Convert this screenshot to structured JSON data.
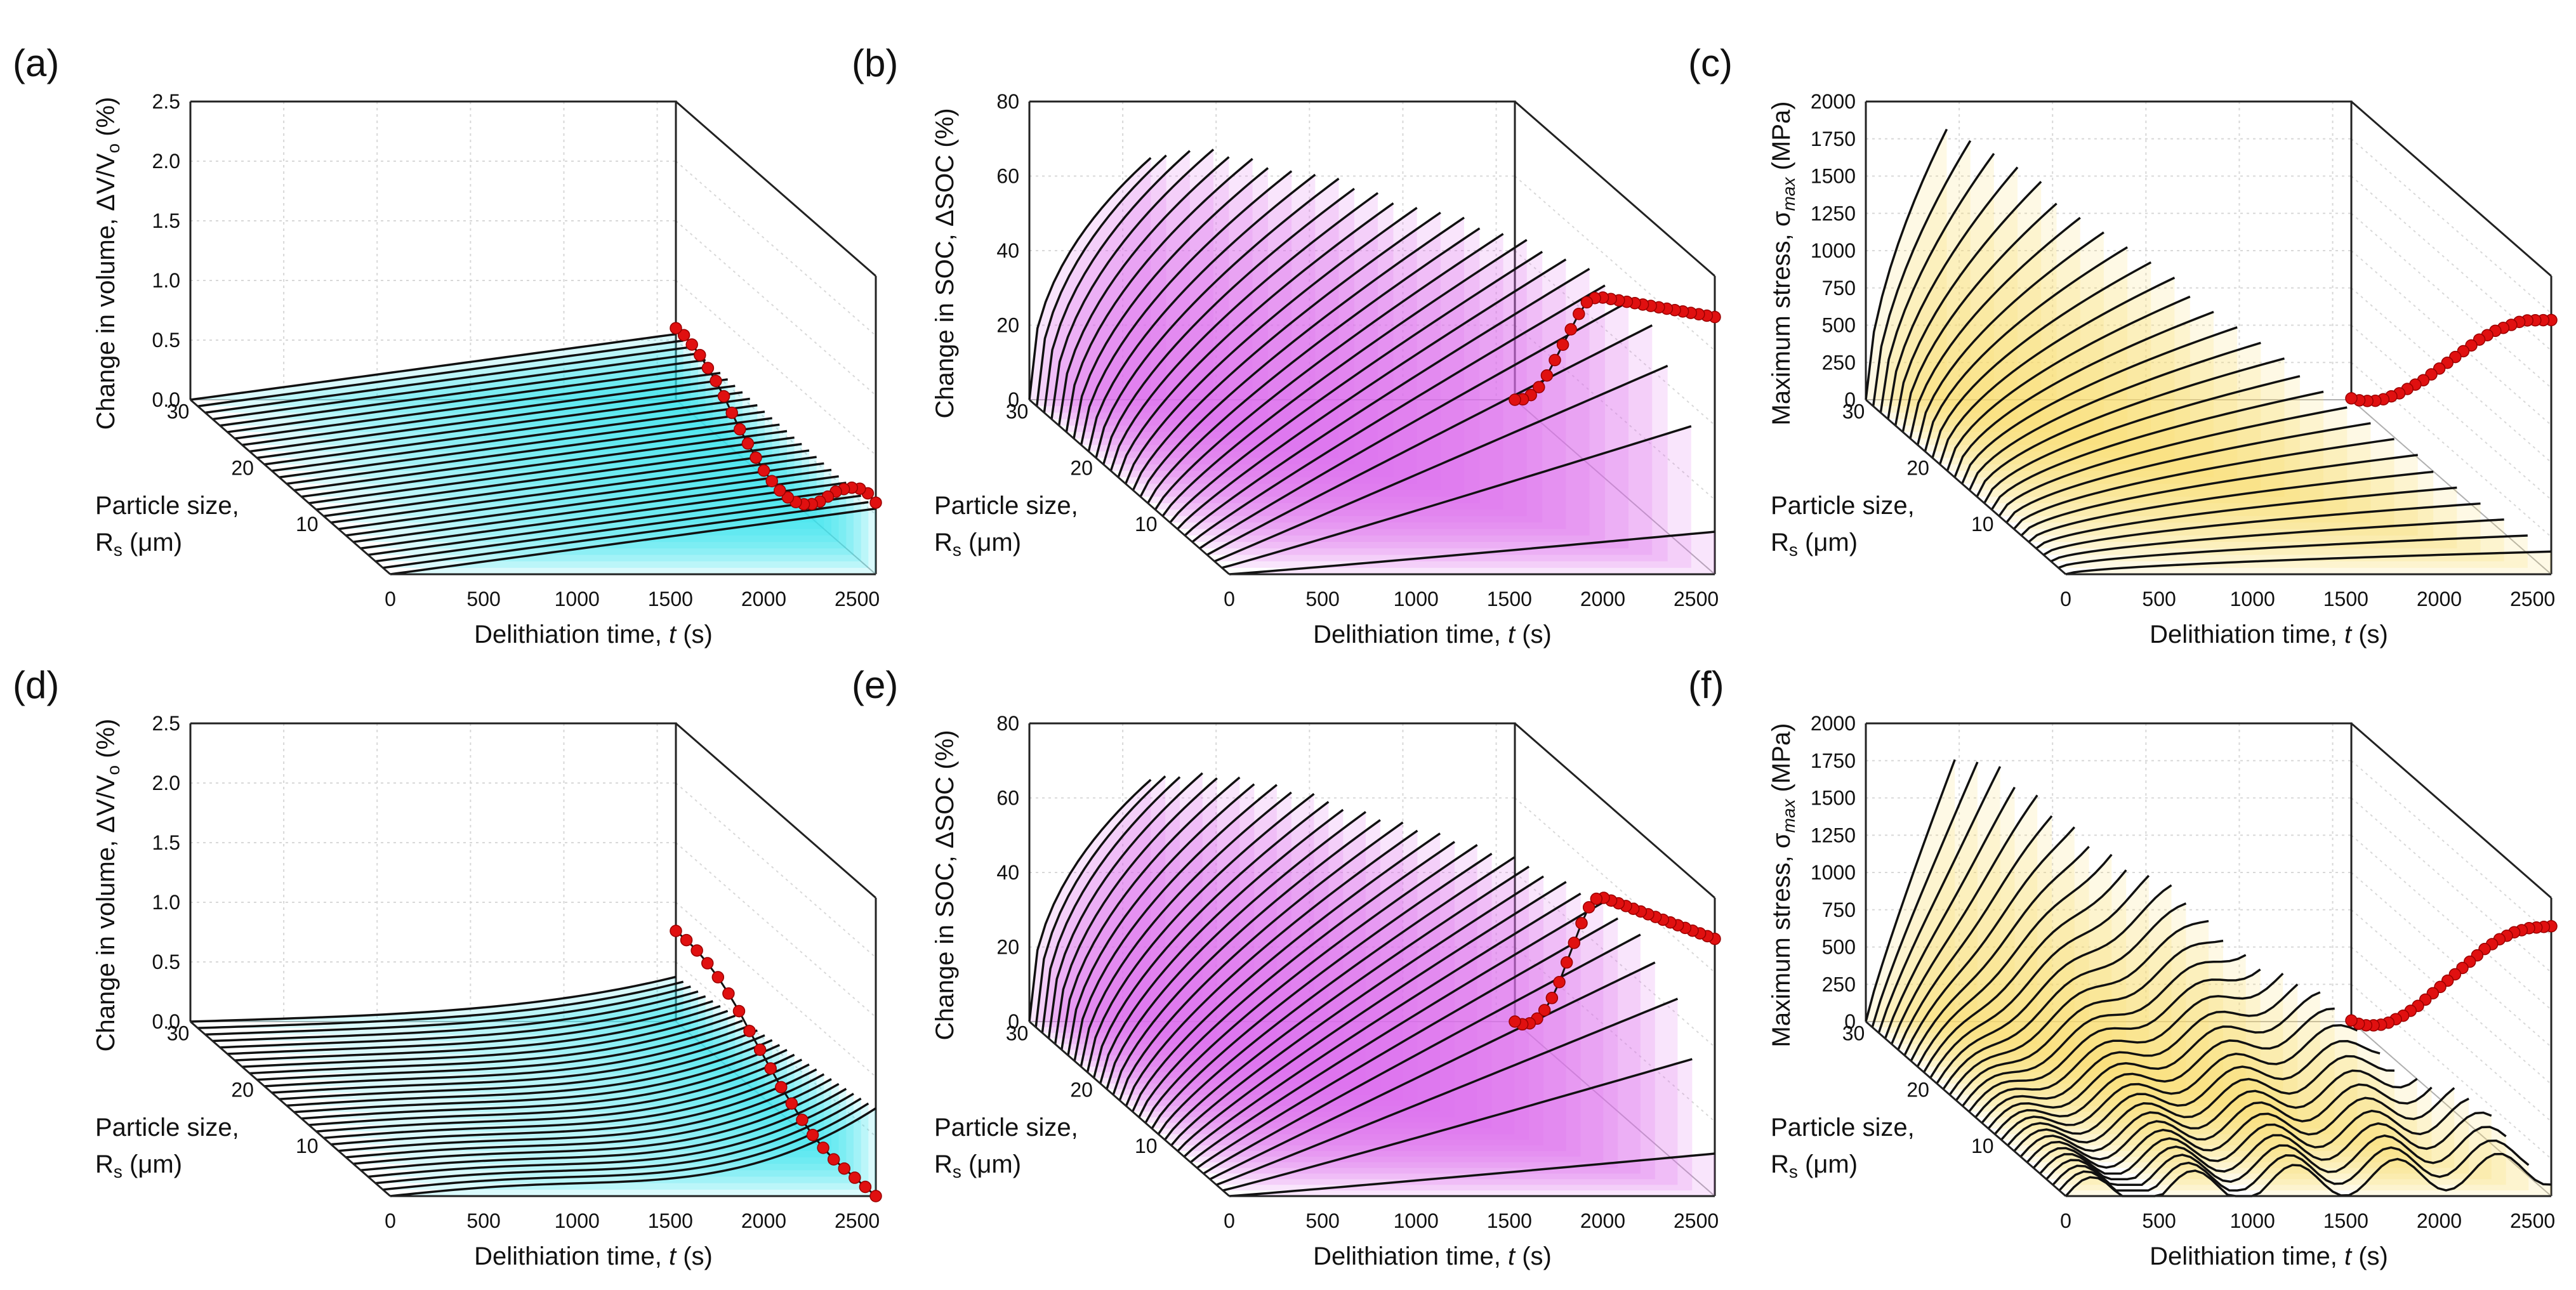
{
  "figure": {
    "background": "#ffffff"
  },
  "axis_text": {
    "x_label_main": "Delithiation time, ",
    "x_label_var": "t",
    "x_label_unit": " (s)",
    "y_label_1": "Particle size,",
    "y_label_2_main": "R",
    "y_label_2_sub": "s",
    "y_label_2_unit": " (μm)",
    "x_ticks": [
      "0",
      "500",
      "1000",
      "1500",
      "2000",
      "2500"
    ],
    "y_ticks": [
      "10",
      "20",
      "30"
    ]
  },
  "chart_data": [
    {
      "panel": "(a)",
      "type": "waterfall",
      "z_label": "Change in volume, ΔV/V",
      "z_label_sub": "o",
      "z_label_unit": " (%)",
      "z_ticks": [
        "0.0",
        "0.5",
        "1.0",
        "1.5",
        "2.0",
        "2.5"
      ],
      "zlim": [
        0,
        2.5
      ],
      "xlim": [
        0,
        2600
      ],
      "ylim": [
        1,
        32
      ],
      "fill_color": "#33e6f0",
      "series_count": 28,
      "profile": "volume_a",
      "peak_end": 0.6,
      "red_dots": [
        0.6,
        0.62,
        0.6,
        0.55,
        0.48,
        0.4,
        0.3,
        0.2,
        0.12,
        0.06,
        0.02,
        0.0,
        0.0,
        0.02,
        0.05,
        0.1,
        0.16,
        0.22,
        0.3,
        0.38,
        0.45,
        0.5,
        0.55,
        0.58,
        0.6,
        0.6
      ]
    },
    {
      "panel": "(b)",
      "type": "waterfall",
      "z_label": "Change in SOC, ΔSOC",
      "z_label_sub": "",
      "z_label_unit": " (%)",
      "z_ticks": [
        "0",
        "20",
        "40",
        "60",
        "80"
      ],
      "zlim": [
        0,
        80
      ],
      "xlim": [
        0,
        2600
      ],
      "ylim": [
        1,
        32
      ],
      "fill_color": "#e070f0",
      "series_count": 28,
      "profile": "soc",
      "peak_end": 69,
      "red_dots": [
        69,
        67.5,
        66,
        64.5,
        63,
        61.5,
        60,
        58.5,
        57,
        55.5,
        54,
        52.5,
        51,
        49.5,
        48,
        46,
        43,
        38,
        32,
        26,
        20,
        14,
        9,
        5,
        2,
        0
      ]
    },
    {
      "panel": "(c)",
      "type": "waterfall",
      "z_label": "Maximum stress, σ",
      "z_label_sub": "max",
      "z_label_unit": " (MPa)",
      "z_ticks": [
        "0",
        "250",
        "500",
        "750",
        "1000",
        "1250",
        "1500",
        "1750",
        "2000"
      ],
      "zlim": [
        0,
        2100
      ],
      "xlim": [
        0,
        2600
      ],
      "ylim": [
        1,
        32
      ],
      "fill_color": "#f7de70",
      "series_count": 28,
      "profile": "stress_c",
      "peak_end": 1790,
      "red_dots": [
        1790,
        1740,
        1690,
        1640,
        1580,
        1510,
        1440,
        1370,
        1290,
        1210,
        1120,
        1030,
        940,
        850,
        760,
        670,
        580,
        500,
        420,
        340,
        270,
        200,
        140,
        90,
        45,
        10
      ]
    },
    {
      "panel": "(d)",
      "type": "waterfall",
      "z_label": "Change in volume, ΔV/V",
      "z_label_sub": "o",
      "z_label_unit": " (%)",
      "z_ticks": [
        "0.0",
        "0.5",
        "1.0",
        "1.5",
        "2.0",
        "2.5"
      ],
      "zlim": [
        0,
        2.5
      ],
      "xlim": [
        0,
        2600
      ],
      "ylim": [
        1,
        32
      ],
      "fill_color": "#33e6f0",
      "series_count": 28,
      "profile": "volume_d",
      "peak_end": 0.75,
      "red_dots": [
        0.0,
        0.0,
        0.0,
        0.0,
        0.0,
        0.02,
        0.05,
        0.1,
        0.16,
        0.22,
        0.3,
        0.38,
        0.46,
        0.55,
        0.62,
        0.68,
        0.72,
        0.75,
        0.76,
        0.76
      ]
    },
    {
      "panel": "(e)",
      "type": "waterfall",
      "z_label": "Change in SOC, ΔSOC",
      "z_label_sub": "",
      "z_label_unit": " (%)",
      "z_ticks": [
        "0",
        "20",
        "40",
        "60",
        "80"
      ],
      "zlim": [
        0,
        80
      ],
      "xlim": [
        0,
        2600
      ],
      "ylim": [
        1,
        32
      ],
      "fill_color": "#e070f0",
      "series_count": 32,
      "profile": "soc",
      "peak_end": 69,
      "red_dots": [
        69,
        68,
        67,
        66,
        65,
        64,
        63,
        62,
        61,
        60,
        59,
        58,
        57,
        56,
        55,
        54,
        52,
        48,
        42,
        35,
        28,
        21,
        15,
        10,
        6,
        3,
        1,
        0
      ]
    },
    {
      "panel": "(f)",
      "type": "waterfall",
      "z_label": "Maximum stress, σ",
      "z_label_sub": "max",
      "z_label_unit": " (MPa)",
      "z_ticks": [
        "0",
        "250",
        "500",
        "750",
        "1000",
        "1250",
        "1500",
        "1750",
        "2000"
      ],
      "zlim": [
        0,
        2100
      ],
      "xlim": [
        0,
        2600
      ],
      "ylim": [
        1,
        32
      ],
      "fill_color": "#f7de70",
      "series_count": 32,
      "profile": "stress_f",
      "peak_end": 1900,
      "red_dots": [
        1900,
        1850,
        1800,
        1750,
        1690,
        1630,
        1560,
        1490,
        1410,
        1330,
        1240,
        1150,
        1060,
        970,
        880,
        790,
        700,
        610,
        520,
        440,
        360,
        290,
        220,
        160,
        110,
        65,
        30,
        8
      ]
    }
  ]
}
